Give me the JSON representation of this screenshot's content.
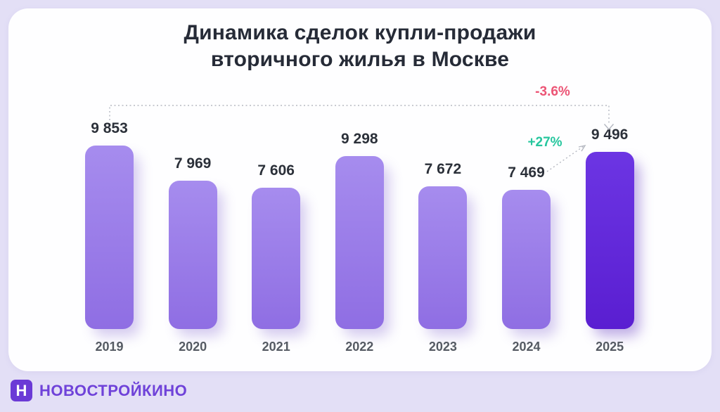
{
  "title": {
    "line1": "Динамика сделок купли-продажи",
    "line2": "вторичного жилья в Москве"
  },
  "chart_data": {
    "type": "bar",
    "title": "Динамика сделок купли-продажи вторичного жилья в Москве",
    "categories": [
      "2019",
      "2020",
      "2021",
      "2022",
      "2023",
      "2024",
      "2025"
    ],
    "values": [
      9853,
      7969,
      7606,
      9298,
      7672,
      7469,
      9496
    ],
    "value_labels": [
      "9 853",
      "7 969",
      "7 606",
      "9 298",
      "7 672",
      "7 469",
      "9 496"
    ],
    "xlabel": "",
    "ylabel": "",
    "ylim": [
      0,
      10500
    ],
    "grid": false,
    "legend": false,
    "bar_color": "#9a7be8",
    "highlight_index": 6,
    "highlight_color": "#6127dd",
    "annotations": [
      {
        "text": "-3.6%",
        "color": "#ec5475",
        "from": "2019",
        "to": "2025"
      },
      {
        "text": "+27%",
        "color": "#26c69e",
        "from": "2024",
        "to": "2025"
      }
    ]
  },
  "logo": {
    "text": "НОВОСТРОЙКИНО",
    "icon_letter": "Н",
    "color": "#6f42d9"
  }
}
